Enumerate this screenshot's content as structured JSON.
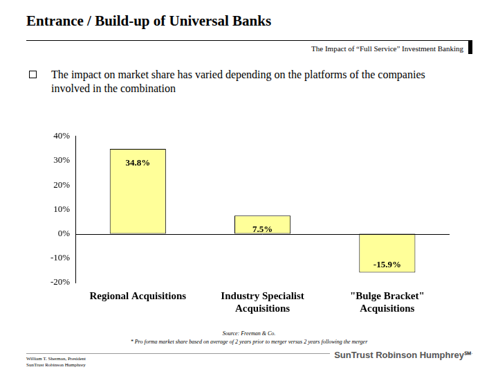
{
  "header": {
    "title": "Entrance / Build-up of Universal Banks",
    "subtitle": "The Impact of “Full Service” Investment Banking"
  },
  "bullet": "The impact on market share has varied depending on the platforms of the companies involved in the combination",
  "chart_data": {
    "type": "bar",
    "categories": [
      "Regional Acquisitions",
      "Industry Specialist Acquisitions",
      "\"Bulge Bracket\" Acquisitions"
    ],
    "values": [
      34.8,
      7.5,
      -15.9
    ],
    "value_labels": [
      "34.8%",
      "7.5%",
      "-15.9%"
    ],
    "color": "#ffff99",
    "ylim": [
      -20,
      40
    ],
    "yticks": [
      {
        "value": -20,
        "label": "-20%"
      },
      {
        "value": -10,
        "label": "-10%"
      },
      {
        "value": 0,
        "label": "0%"
      },
      {
        "value": 10,
        "label": "10%"
      },
      {
        "value": 20,
        "label": "20%"
      },
      {
        "value": 30,
        "label": "30%"
      },
      {
        "value": 40,
        "label": "40%"
      }
    ],
    "grid": false,
    "data_labels": true
  },
  "source": "Source: Freeman & Co.",
  "footnote": "* Pro forma market share based on average of 2 years prior to merger versus 2 years following the merger",
  "footer": {
    "lines": [
      "William T. Sherman, President",
      "SunTrust Robinson Humphrey"
    ],
    "logo": "SunTrust Robinson Humphrey℠"
  }
}
